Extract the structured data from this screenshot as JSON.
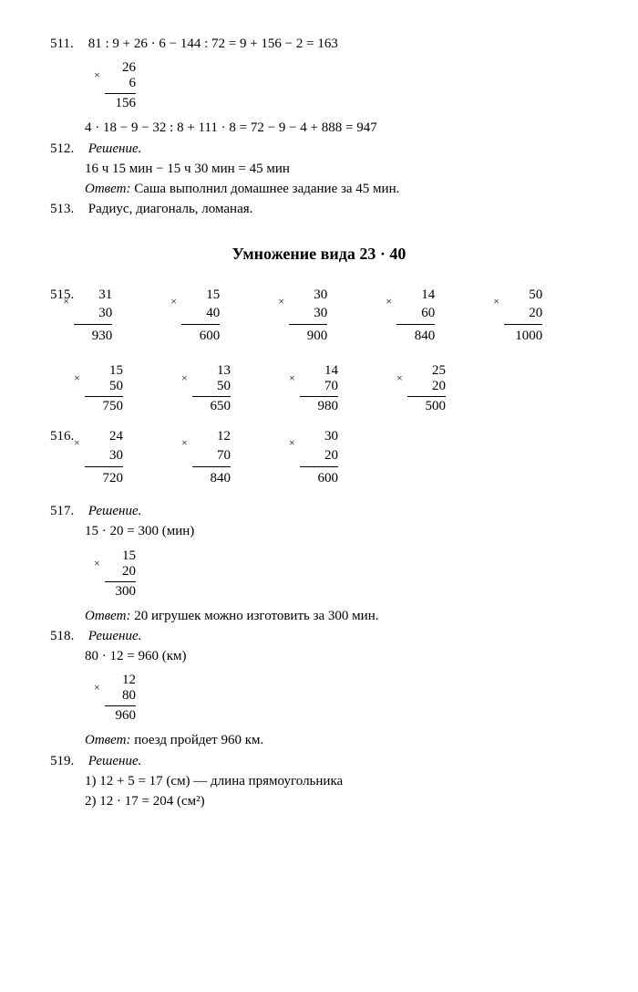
{
  "p511": {
    "num": "511.",
    "line1": "81 : 9 + 26 · 6 − 144 : 72 = 9 + 156 − 2 = 163",
    "vmul": {
      "a": "26",
      "b": "6",
      "r": "156"
    },
    "line2": "4 · 18 − 9 − 32 : 8 + 111 · 8 = 72 − 9 − 4 + 888 = 947"
  },
  "p512": {
    "num": "512.",
    "label": "Решение.",
    "line1": "16 ч 15 мин − 15 ч 30 мин = 45 мин",
    "answer_label": "Ответ:",
    "answer": " Саша выполнил домашнее задание за 45 мин."
  },
  "p513": {
    "num": "513.",
    "text": "Радиус, диагональ, ломаная."
  },
  "section": "Умножение вида 23 · 40",
  "p515": {
    "num": "515.",
    "row1": [
      {
        "a": "31",
        "b": "30",
        "r": "930"
      },
      {
        "a": "15",
        "b": "40",
        "r": "600"
      },
      {
        "a": "30",
        "b": "30",
        "r": "900"
      },
      {
        "a": "14",
        "b": "60",
        "r": "840"
      },
      {
        "a": "50",
        "b": "20",
        "r": "1000"
      }
    ],
    "row2": [
      {
        "a": "15",
        "b": "50",
        "r": "750"
      },
      {
        "a": "13",
        "b": "50",
        "r": "650"
      },
      {
        "a": "14",
        "b": "70",
        "r": "980"
      },
      {
        "a": "25",
        "b": "20",
        "r": "500"
      }
    ]
  },
  "p516": {
    "num": "516.",
    "row": [
      {
        "a": "24",
        "b": "30",
        "r": "720"
      },
      {
        "a": "12",
        "b": "70",
        "r": "840"
      },
      {
        "a": "30",
        "b": "20",
        "r": "600"
      }
    ]
  },
  "p517": {
    "num": "517.",
    "label": "Решение.",
    "line1": "15 · 20 = 300 (мин)",
    "vmul": {
      "a": "15",
      "b": "20",
      "r": "300"
    },
    "answer_label": "Ответ:",
    "answer": " 20 игрушек можно изготовить за 300 мин."
  },
  "p518": {
    "num": "518.",
    "label": "Решение.",
    "line1": "80 · 12 = 960 (км)",
    "vmul": {
      "a": "12",
      "b": "80",
      "r": "960"
    },
    "answer_label": "Ответ:",
    "answer": " поезд пройдет 960 км."
  },
  "p519": {
    "num": "519.",
    "label": "Решение.",
    "line1": "1) 12 + 5 = 17 (см) — длина прямоугольника",
    "line2": "2) 12 · 17 = 204 (см²)"
  }
}
